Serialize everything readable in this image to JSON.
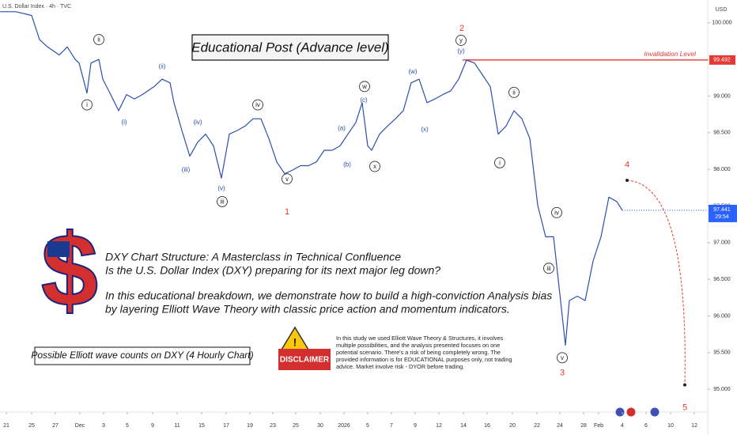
{
  "header": "U.S. Dollar Index · 4h · TVC",
  "chart_data": {
    "type": "line",
    "currency": "USD",
    "title": "Educational Post (Advance level)",
    "grid": false,
    "xlim": [
      0,
      179
    ],
    "ylim": [
      94.7,
      100.31
    ],
    "xticks": [
      {
        "value": 1.6,
        "label": "21"
      },
      {
        "value": 8,
        "label": "25"
      },
      {
        "value": 14,
        "label": "27"
      },
      {
        "value": 20.2,
        "label": "Dec"
      },
      {
        "value": 26.2,
        "label": "3"
      },
      {
        "value": 32.2,
        "label": "5"
      },
      {
        "value": 38.6,
        "label": "9"
      },
      {
        "value": 44.8,
        "label": "11"
      },
      {
        "value": 51,
        "label": "15"
      },
      {
        "value": 57.2,
        "label": "17"
      },
      {
        "value": 63.2,
        "label": "19"
      },
      {
        "value": 69,
        "label": "23"
      },
      {
        "value": 74.8,
        "label": "25"
      },
      {
        "value": 81,
        "label": "30"
      },
      {
        "value": 87,
        "label": "2026"
      },
      {
        "value": 93,
        "label": "5"
      },
      {
        "value": 99,
        "label": "7"
      },
      {
        "value": 105,
        "label": "9"
      },
      {
        "value": 111,
        "label": "12"
      },
      {
        "value": 117.2,
        "label": "14"
      },
      {
        "value": 123.2,
        "label": "16"
      },
      {
        "value": 129.6,
        "label": "20"
      },
      {
        "value": 135.8,
        "label": "22"
      },
      {
        "value": 141.6,
        "label": "24"
      },
      {
        "value": 147.6,
        "label": "28"
      },
      {
        "value": 151.4,
        "label": "Feb"
      },
      {
        "value": 157.4,
        "label": "4"
      },
      {
        "value": 163.4,
        "label": "6"
      },
      {
        "value": 169.6,
        "label": "10"
      },
      {
        "value": 175.6,
        "label": "12"
      }
    ],
    "yticks": [
      {
        "value": 100,
        "label": "100.000"
      },
      {
        "value": 99.5,
        "label": "99.500"
      },
      {
        "value": 99,
        "label": "99.000"
      },
      {
        "value": 98.5,
        "label": "98.500"
      },
      {
        "value": 98,
        "label": "98.000"
      },
      {
        "value": 97.5,
        "label": "97.500"
      },
      {
        "value": 97,
        "label": "97.000"
      },
      {
        "value": 96.5,
        "label": "96.500"
      },
      {
        "value": 96,
        "label": "96.000"
      },
      {
        "value": 95.5,
        "label": "95.500"
      },
      {
        "value": 95,
        "label": "95.000"
      }
    ],
    "x": [
      0,
      4,
      8,
      10,
      12,
      15,
      17,
      19,
      20,
      22,
      23,
      25,
      26,
      28,
      30,
      32,
      34,
      36,
      39,
      41,
      43,
      44,
      46,
      48,
      50,
      52,
      54,
      56,
      58,
      60,
      62,
      64,
      66,
      68,
      70,
      72,
      74,
      76,
      78,
      80,
      82,
      84,
      86,
      88,
      90,
      91.6,
      93,
      94,
      96,
      98,
      100,
      102,
      104,
      106,
      108,
      110,
      112,
      114,
      116,
      118,
      120,
      122,
      124,
      126,
      128,
      130,
      132,
      134,
      136,
      138,
      140,
      142,
      143,
      144,
      146,
      148,
      150,
      152,
      154,
      156,
      157.4
    ],
    "series": [
      {
        "color": "#2a4fb0",
        "values": [
          100.15,
          100.15,
          100.1,
          99.77,
          99.67,
          99.56,
          99.67,
          99.5,
          99.45,
          99.04,
          99.45,
          99.5,
          99.23,
          99.02,
          98.8,
          99.02,
          98.96,
          99.02,
          99.13,
          99.23,
          99.18,
          98.91,
          98.53,
          98.18,
          98.37,
          98.48,
          98.32,
          97.88,
          98.48,
          98.53,
          98.59,
          98.69,
          98.69,
          98.42,
          98.1,
          97.94,
          97.99,
          98.05,
          98.05,
          98.1,
          98.26,
          98.26,
          98.32,
          98.48,
          98.64,
          98.91,
          98.32,
          98.26,
          98.48,
          98.59,
          98.69,
          98.8,
          99.18,
          99.23,
          98.91,
          98.96,
          99.02,
          99.07,
          99.23,
          99.49,
          99.45,
          99.29,
          99.13,
          98.48,
          98.59,
          98.8,
          98.69,
          98.42,
          97.51,
          97.08,
          97.08,
          96.1,
          95.6,
          96.21,
          96.27,
          96.21,
          96.75,
          97.08,
          97.62,
          97.56,
          97.441
        ]
      }
    ],
    "invalidation": {
      "label": "Invalidation Level",
      "value": 99.492,
      "x": 117,
      "color": "#e53935"
    },
    "last_price": {
      "value": 97.441,
      "countdown": "29:54",
      "color": "#2962ff"
    },
    "projection": {
      "x": [
        158.6,
        173.2
      ],
      "values": [
        97.85,
        95.06
      ],
      "color": "#e53935"
    },
    "annotations": [
      {
        "text": "ii",
        "x": 25,
        "y": 99.77,
        "style": "circle"
      },
      {
        "text": "i",
        "x": 22,
        "y": 98.88,
        "style": "circle"
      },
      {
        "text": "(ii)",
        "x": 41,
        "y": 99.4,
        "style": "plain"
      },
      {
        "text": "(i)",
        "x": 31.4,
        "y": 98.64,
        "style": "plain"
      },
      {
        "text": "(iv)",
        "x": 50,
        "y": 98.64,
        "style": "plain"
      },
      {
        "text": "(iii)",
        "x": 47,
        "y": 97.99,
        "style": "plain"
      },
      {
        "text": "iv",
        "x": 65.2,
        "y": 98.88,
        "style": "circle"
      },
      {
        "text": "(v)",
        "x": 56,
        "y": 97.74,
        "style": "plain"
      },
      {
        "text": "iii",
        "x": 56.2,
        "y": 97.56,
        "style": "circle"
      },
      {
        "text": "v",
        "x": 72.6,
        "y": 97.87,
        "style": "circle"
      },
      {
        "text": "1",
        "x": 72.6,
        "y": 97.42,
        "style": "wave"
      },
      {
        "text": "(a)",
        "x": 86.4,
        "y": 98.56,
        "style": "plain"
      },
      {
        "text": "(b)",
        "x": 87.8,
        "y": 98.06,
        "style": "plain"
      },
      {
        "text": "w",
        "x": 92.2,
        "y": 99.13,
        "style": "circle"
      },
      {
        "text": "(c)",
        "x": 92,
        "y": 98.94,
        "style": "plain"
      },
      {
        "text": "x",
        "x": 94.8,
        "y": 98.04,
        "style": "circle"
      },
      {
        "text": "(w)",
        "x": 104.4,
        "y": 99.33,
        "style": "plain"
      },
      {
        "text": "(x)",
        "x": 107.4,
        "y": 98.54,
        "style": "plain"
      },
      {
        "text": "2",
        "x": 116.8,
        "y": 99.92,
        "style": "wave"
      },
      {
        "text": "y",
        "x": 116.6,
        "y": 99.76,
        "style": "circle"
      },
      {
        "text": "(y)",
        "x": 116.6,
        "y": 99.61,
        "style": "plain"
      },
      {
        "text": "ii",
        "x": 130,
        "y": 99.05,
        "style": "circle"
      },
      {
        "text": "i",
        "x": 126.4,
        "y": 98.09,
        "style": "circle"
      },
      {
        "text": "iv",
        "x": 140.8,
        "y": 97.41,
        "style": "circle"
      },
      {
        "text": "iii",
        "x": 138.8,
        "y": 96.65,
        "style": "circle"
      },
      {
        "text": "v",
        "x": 142.2,
        "y": 95.43,
        "style": "circle"
      },
      {
        "text": "3",
        "x": 142.2,
        "y": 95.22,
        "style": "wave"
      },
      {
        "text": "4",
        "x": 158.6,
        "y": 98.06,
        "style": "wave"
      },
      {
        "text": "5",
        "x": 173.2,
        "y": 94.75,
        "style": "wave"
      }
    ]
  },
  "intro": {
    "lines": [
      "DXY Chart Structure: A Masterclass in Technical Confluence",
      "Is the U.S. Dollar Index (DXY) preparing for its next major leg down?",
      "In this educational breakdown, we demonstrate how to build a high-conviction Analysis bias",
      "by layering Elliott Wave Theory with classic price action and momentum indicators."
    ]
  },
  "caption": "Possible Elliott wave counts on DXY (4 Hourly Chart)",
  "disclaimer": {
    "title": "DISCLAIMER",
    "lines": [
      "In this study we used Elliott Wave Theory & Structures, it involves",
      "multiple possibilities, and the analysis presented focuses on one",
      "potential scenario. There's a risk of being completely wrong. The",
      "provided information is for EDUCATIONAL purposes only, not trading",
      "advice.  Market involve risk - DYOR before trading."
    ]
  }
}
